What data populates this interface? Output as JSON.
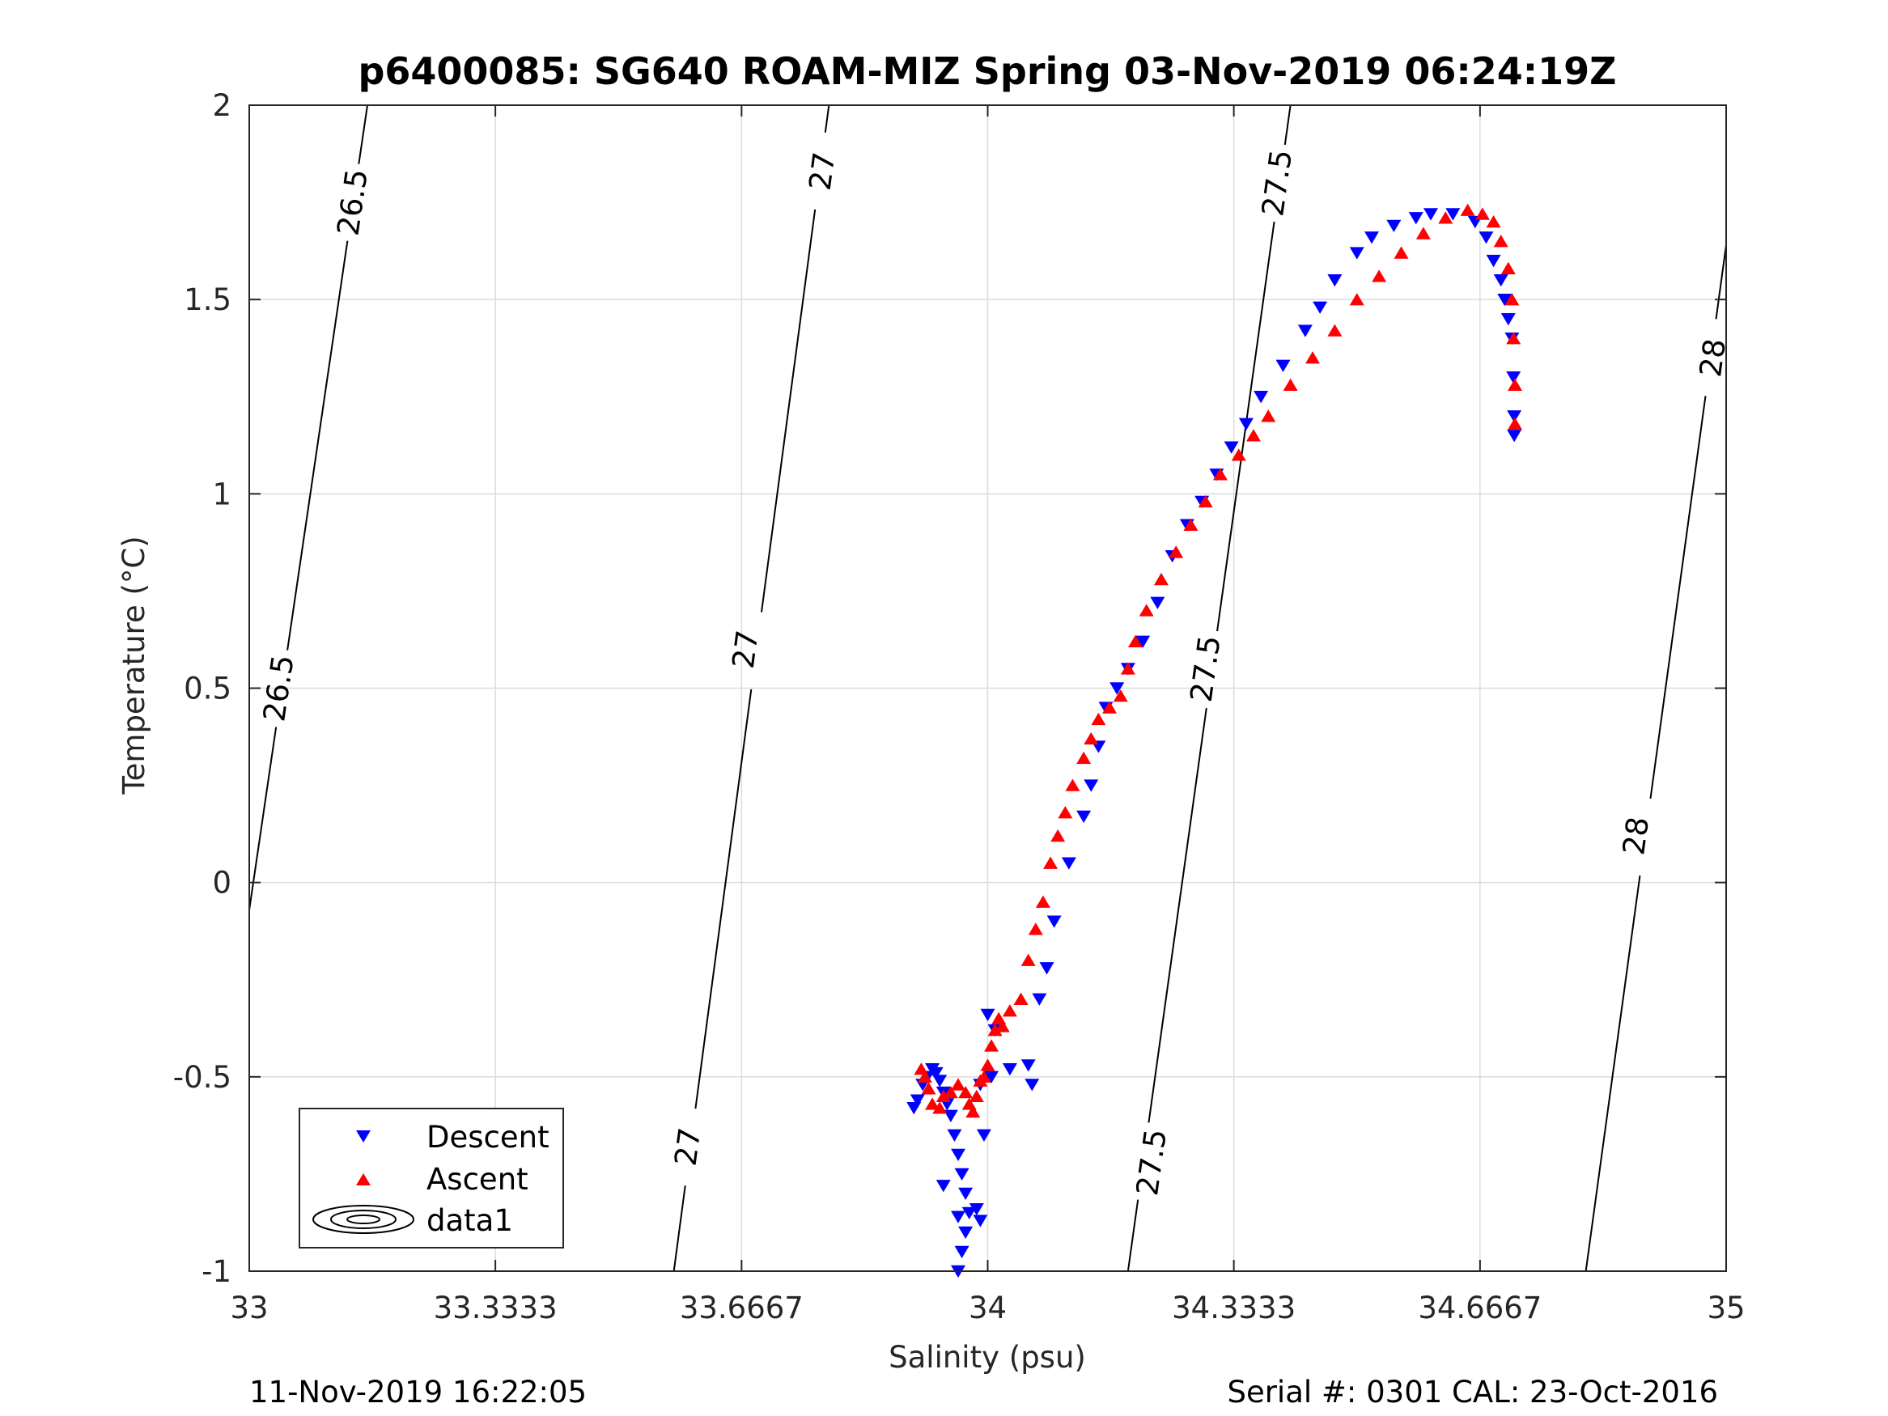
{
  "chart_data": {
    "type": "scatter",
    "title": "p6400085: SG640 ROAM-MIZ Spring 03-Nov-2019 06:24:19Z",
    "xlabel": "Salinity (psu)",
    "ylabel": "Temperature (°C)",
    "xlim": [
      33,
      35
    ],
    "ylim": [
      -1,
      2
    ],
    "x_ticks": [
      "33",
      "33.3333",
      "33.6667",
      "34",
      "34.3333",
      "34.6667",
      "35"
    ],
    "y_ticks": [
      "-1",
      "-0.5",
      "0",
      "0.5",
      "1",
      "1.5",
      "2"
    ],
    "grid": true,
    "legend_placement": "bottom-left",
    "legend": [
      "Descent",
      "Ascent",
      "data1"
    ],
    "series": [
      {
        "name": "Descent",
        "marker": "triangle-down",
        "color": "#0000ff",
        "x": [
          33.96,
          33.965,
          33.97,
          33.975,
          33.97,
          33.965,
          33.96,
          33.955,
          33.95,
          33.945,
          33.94,
          33.935,
          33.93,
          33.925,
          33.918,
          33.912,
          33.905,
          33.9,
          33.94,
          33.96,
          33.985,
          33.99,
          33.995,
          33.99,
          34.0,
          34.005,
          34.01,
          34.03,
          34.055,
          34.06,
          34.07,
          34.08,
          34.09,
          34.11,
          34.13,
          34.14,
          34.15,
          34.16,
          34.175,
          34.19,
          34.21,
          34.23,
          34.25,
          34.27,
          34.29,
          34.31,
          34.33,
          34.35,
          34.37,
          34.4,
          34.43,
          34.45,
          34.47,
          34.5,
          34.52,
          34.55,
          34.58,
          34.6,
          34.63,
          34.66,
          34.675,
          34.685,
          34.695,
          34.7,
          34.705,
          34.71,
          34.712,
          34.713,
          34.713
        ],
        "y": [
          -1.0,
          -0.95,
          -0.9,
          -0.85,
          -0.8,
          -0.75,
          -0.7,
          -0.65,
          -0.6,
          -0.57,
          -0.54,
          -0.51,
          -0.49,
          -0.48,
          -0.5,
          -0.52,
          -0.56,
          -0.58,
          -0.78,
          -0.86,
          -0.84,
          -0.87,
          -0.65,
          -0.52,
          -0.34,
          -0.5,
          -0.38,
          -0.48,
          -0.47,
          -0.52,
          -0.3,
          -0.22,
          -0.1,
          0.05,
          0.17,
          0.25,
          0.35,
          0.45,
          0.5,
          0.55,
          0.62,
          0.72,
          0.84,
          0.92,
          0.98,
          1.05,
          1.12,
          1.18,
          1.25,
          1.33,
          1.42,
          1.48,
          1.55,
          1.62,
          1.66,
          1.69,
          1.71,
          1.72,
          1.72,
          1.7,
          1.66,
          1.6,
          1.55,
          1.5,
          1.45,
          1.4,
          1.3,
          1.2,
          1.15
        ]
      },
      {
        "name": "Ascent",
        "marker": "triangle-up",
        "color": "#ff0000",
        "x": [
          33.91,
          33.915,
          33.92,
          33.925,
          33.935,
          33.94,
          33.95,
          33.96,
          33.97,
          33.975,
          33.98,
          33.985,
          33.99,
          33.995,
          34.0,
          34.005,
          34.01,
          34.015,
          34.02,
          34.03,
          34.045,
          34.055,
          34.065,
          34.075,
          34.085,
          34.095,
          34.105,
          34.115,
          34.13,
          34.14,
          34.15,
          34.165,
          34.18,
          34.19,
          34.2,
          34.215,
          34.235,
          34.255,
          34.275,
          34.295,
          34.315,
          34.34,
          34.36,
          34.38,
          34.41,
          34.44,
          34.47,
          34.5,
          34.53,
          34.56,
          34.59,
          34.62,
          34.65,
          34.67,
          34.685,
          34.695,
          34.705,
          34.71,
          34.712,
          34.714,
          34.714
        ],
        "y": [
          -0.48,
          -0.5,
          -0.53,
          -0.57,
          -0.58,
          -0.55,
          -0.54,
          -0.52,
          -0.54,
          -0.57,
          -0.59,
          -0.55,
          -0.51,
          -0.5,
          -0.47,
          -0.42,
          -0.38,
          -0.35,
          -0.37,
          -0.33,
          -0.3,
          -0.2,
          -0.12,
          -0.05,
          0.05,
          0.12,
          0.18,
          0.25,
          0.32,
          0.37,
          0.42,
          0.45,
          0.48,
          0.55,
          0.62,
          0.7,
          0.78,
          0.85,
          0.92,
          0.98,
          1.05,
          1.1,
          1.15,
          1.2,
          1.28,
          1.35,
          1.42,
          1.5,
          1.56,
          1.62,
          1.67,
          1.71,
          1.73,
          1.72,
          1.7,
          1.65,
          1.58,
          1.5,
          1.4,
          1.28,
          1.18
        ]
      }
    ],
    "contours": [
      {
        "level": "26.5",
        "p0": [
          32.99,
          -0.2
        ],
        "p1": [
          33.16,
          2.0
        ],
        "labels": [
          [
            33.04,
            0.5
          ],
          [
            33.14,
            1.75
          ]
        ]
      },
      {
        "level": "27",
        "p0": [
          33.575,
          -1.0
        ],
        "p1": [
          33.785,
          2.0
        ],
        "labels": [
          [
            33.594,
            -0.68
          ],
          [
            33.672,
            0.6
          ],
          [
            33.776,
            1.83
          ]
        ]
      },
      {
        "level": "27.5",
        "p0": [
          34.19,
          -1.0
        ],
        "p1": [
          34.41,
          2.0
        ],
        "labels": [
          [
            34.222,
            -0.72
          ],
          [
            34.295,
            0.55
          ],
          [
            34.392,
            1.8
          ]
        ]
      },
      {
        "level": "28",
        "p0": [
          34.81,
          -1.0
        ],
        "p1": [
          35.0,
          1.64
        ],
        "labels": [
          [
            34.878,
            0.12
          ],
          [
            34.982,
            1.35
          ]
        ]
      }
    ]
  },
  "footer": {
    "left": "11-Nov-2019 16:22:05",
    "right": "Serial #: 0301  CAL: 23-Oct-2016"
  }
}
